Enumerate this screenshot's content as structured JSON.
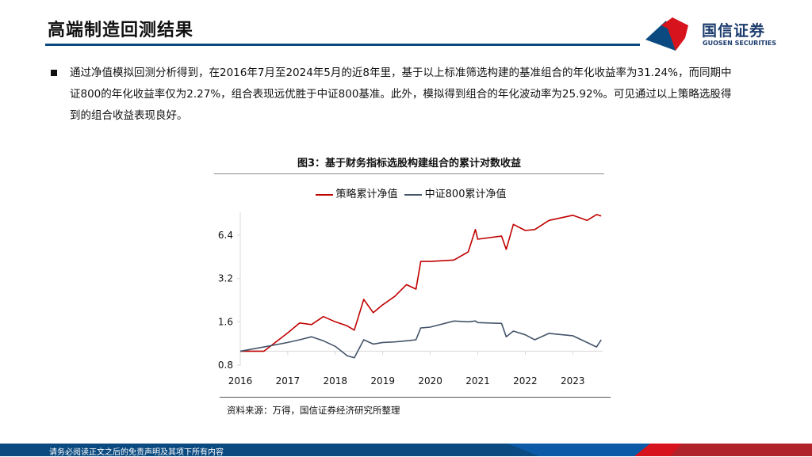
{
  "header": {
    "title": "高端制造回测结果",
    "logo_cn": "国信证券",
    "logo_en": "GUOSEN SECURITIES",
    "brand_blue": "#0b4a80",
    "brand_red": "#d7141d"
  },
  "body": {
    "bullet_lines": [
      "通过净值模拟回测分析得到，在2016年7月至2024年5月的近8年里，基于以上标准筛选构建的基准组合的年化收益率为31.24%，而同期中",
      "证800的年化收益率仅为2.27%，组合表现远优胜于中证800基准。此外，模拟得到组合的年化波动率为25.92%。可见通过以上策略选股得",
      "到的组合收益表现良好。"
    ]
  },
  "chart_data": {
    "type": "line",
    "title": "图3：基于财务指标选股构建组合的累计对数收益",
    "legend_position": "top",
    "y_scale": "log2",
    "ylim": [
      0.8,
      9.0
    ],
    "yticks": [
      "0.8",
      "1.6",
      "3.2",
      "6.4"
    ],
    "xlim": [
      2016,
      2023.6
    ],
    "xticks": [
      "2016",
      "2017",
      "2018",
      "2019",
      "2020",
      "2021",
      "2022",
      "2023"
    ],
    "grid": false,
    "x": [
      2016.0,
      2016.5,
      2017.0,
      2017.25,
      2017.5,
      2017.75,
      2018.0,
      2018.25,
      2018.4,
      2018.6,
      2018.8,
      2019.0,
      2019.25,
      2019.5,
      2019.7,
      2019.8,
      2020.0,
      2020.5,
      2020.8,
      2020.95,
      2021.0,
      2021.5,
      2021.6,
      2021.75,
      2022.0,
      2022.2,
      2022.5,
      2023.0,
      2023.3,
      2023.5,
      2023.6
    ],
    "series": [
      {
        "name": "策略累计净值",
        "color": "#c00000",
        "values": [
          1.0,
          1.0,
          1.34,
          1.57,
          1.53,
          1.74,
          1.6,
          1.5,
          1.4,
          2.29,
          1.85,
          2.1,
          2.4,
          2.9,
          2.7,
          4.2,
          4.2,
          4.3,
          4.9,
          7.0,
          6.0,
          6.3,
          5.1,
          7.6,
          6.9,
          7.0,
          8.1,
          8.8,
          8.1,
          8.9,
          8.7
        ]
      },
      {
        "name": "中证800累计净值",
        "color": "#44546a",
        "values": [
          1.0,
          1.07,
          1.15,
          1.2,
          1.26,
          1.18,
          1.08,
          0.93,
          0.9,
          1.2,
          1.12,
          1.15,
          1.16,
          1.18,
          1.2,
          1.45,
          1.47,
          1.62,
          1.6,
          1.62,
          1.58,
          1.56,
          1.26,
          1.38,
          1.3,
          1.2,
          1.33,
          1.28,
          1.15,
          1.07,
          1.2
        ]
      }
    ],
    "source": "资料来源：万得，国信证券经济研究所整理"
  },
  "footer": {
    "disclaimer": "请务必阅读正文之后的免责声明及其项下所有内容"
  }
}
